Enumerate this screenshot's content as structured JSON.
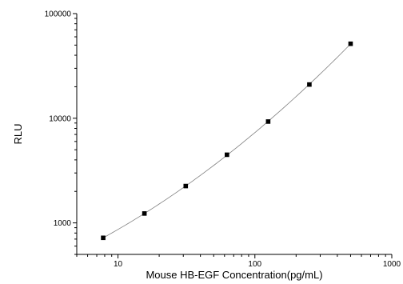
{
  "chart_data": {
    "type": "scatter",
    "title": "",
    "xlabel": "Mouse HB-EGF Concentration(pg/mL)",
    "ylabel": "RLU",
    "xscale": "log",
    "yscale": "log",
    "xlim": [
      5,
      1000
    ],
    "ylim": [
      500,
      100000
    ],
    "x_ticks": [
      10,
      100,
      1000
    ],
    "x_tick_labels": [
      "10",
      "100",
      "1000"
    ],
    "y_ticks": [
      1000,
      10000,
      100000
    ],
    "y_tick_labels": [
      "1000",
      "10000",
      "100000"
    ],
    "grid": false,
    "legend": "none",
    "fit_curve": true,
    "series": [
      {
        "x": [
          7.8,
          15.6,
          31.25,
          62.5,
          125,
          250,
          500
        ],
        "y": [
          720,
          1230,
          2250,
          4480,
          9300,
          21000,
          51500
        ]
      }
    ],
    "colors": {
      "marker": "#000000",
      "curve": "#7f7f7f",
      "axis": "#000000"
    }
  }
}
